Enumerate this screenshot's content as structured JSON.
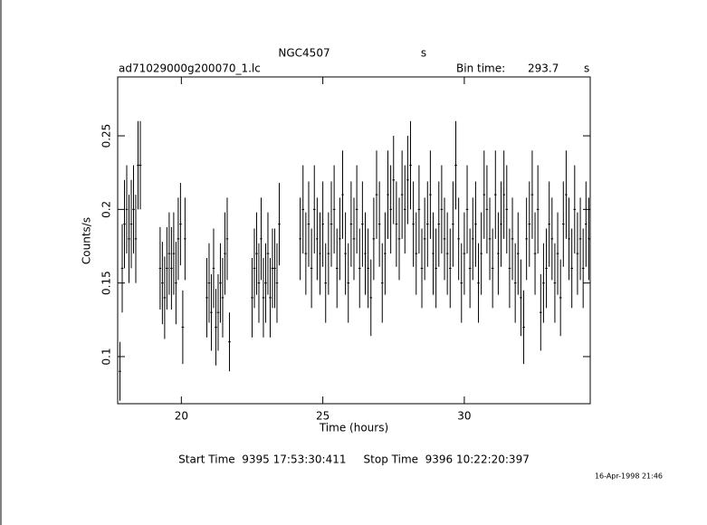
{
  "chart_data": {
    "type": "errorbar",
    "title": "NGC4507",
    "title_unit": "s",
    "subtitle": "ad71029000g200070_1.lc",
    "bin_time_label": "Bin time:",
    "bin_time": "293.7",
    "bin_time_unit": "s",
    "x_label": "Time (hours)",
    "y_label": "Counts/s",
    "footer": "Start Time  9395 17:53:30:411     Stop Time  9396 10:22:20:397",
    "timestamp": "16-Apr-1998 21:46",
    "color": "#000000",
    "xlim": [
      17.75,
      34.45
    ],
    "ylim": [
      0.068,
      0.29
    ],
    "xticks": [
      20,
      25,
      30
    ],
    "yticks": [
      0.1,
      0.15,
      0.2,
      0.25
    ],
    "x": [
      17.83,
      17.91,
      17.99,
      18.07,
      18.15,
      18.23,
      18.31,
      18.39,
      18.47,
      18.55,
      19.25,
      19.33,
      19.41,
      19.49,
      19.57,
      19.65,
      19.73,
      19.81,
      19.89,
      19.97,
      20.05,
      20.13,
      20.9,
      20.98,
      21.06,
      21.14,
      21.22,
      21.3,
      21.38,
      21.46,
      21.54,
      21.62,
      21.7,
      22.5,
      22.58,
      22.66,
      22.74,
      22.82,
      22.9,
      22.98,
      23.06,
      23.14,
      23.22,
      23.3,
      23.38,
      23.46,
      24.2,
      24.3,
      24.4,
      24.5,
      24.6,
      24.7,
      24.8,
      24.9,
      25.0,
      25.1,
      25.2,
      25.3,
      25.4,
      25.5,
      25.6,
      25.7,
      25.8,
      25.9,
      26.0,
      26.1,
      26.2,
      26.3,
      26.4,
      26.5,
      26.6,
      26.7,
      26.8,
      26.9,
      27.0,
      27.1,
      27.2,
      27.3,
      27.4,
      27.5,
      27.6,
      27.7,
      27.8,
      27.9,
      28.0,
      28.1,
      28.2,
      28.3,
      28.4,
      28.5,
      28.6,
      28.7,
      28.8,
      28.9,
      29.0,
      29.1,
      29.2,
      29.3,
      29.4,
      29.5,
      29.6,
      29.7,
      29.8,
      29.9,
      30.0,
      30.1,
      30.2,
      30.3,
      30.4,
      30.5,
      30.6,
      30.7,
      30.8,
      30.9,
      31.0,
      31.1,
      31.2,
      31.3,
      31.4,
      31.5,
      31.6,
      31.7,
      31.8,
      31.9,
      32.0,
      32.1,
      32.2,
      32.3,
      32.4,
      32.5,
      32.6,
      32.7,
      32.8,
      32.9,
      33.0,
      33.1,
      33.2,
      33.3,
      33.4,
      33.5,
      33.6,
      33.7,
      33.8,
      33.9,
      34.0,
      34.1,
      34.2,
      34.3,
      34.4
    ],
    "values": [
      0.09,
      0.16,
      0.19,
      0.2,
      0.18,
      0.19,
      0.2,
      0.18,
      0.23,
      0.23,
      0.16,
      0.15,
      0.14,
      0.16,
      0.17,
      0.16,
      0.17,
      0.15,
      0.18,
      0.19,
      0.12,
      0.18,
      0.14,
      0.15,
      0.13,
      0.16,
      0.12,
      0.13,
      0.15,
      0.14,
      0.17,
      0.18,
      0.11,
      0.14,
      0.16,
      0.17,
      0.15,
      0.18,
      0.14,
      0.15,
      0.17,
      0.14,
      0.16,
      0.16,
      0.15,
      0.19,
      0.18,
      0.2,
      0.17,
      0.19,
      0.16,
      0.2,
      0.18,
      0.17,
      0.19,
      0.15,
      0.17,
      0.19,
      0.2,
      0.16,
      0.18,
      0.21,
      0.17,
      0.15,
      0.19,
      0.18,
      0.2,
      0.16,
      0.19,
      0.17,
      0.16,
      0.14,
      0.18,
      0.21,
      0.19,
      0.15,
      0.17,
      0.21,
      0.2,
      0.22,
      0.19,
      0.18,
      0.21,
      0.2,
      0.22,
      0.23,
      0.19,
      0.17,
      0.2,
      0.16,
      0.18,
      0.19,
      0.21,
      0.17,
      0.16,
      0.19,
      0.2,
      0.18,
      0.17,
      0.16,
      0.19,
      0.23,
      0.18,
      0.15,
      0.17,
      0.2,
      0.16,
      0.18,
      0.19,
      0.15,
      0.17,
      0.21,
      0.2,
      0.18,
      0.16,
      0.21,
      0.17,
      0.19,
      0.21,
      0.2,
      0.16,
      0.18,
      0.15,
      0.17,
      0.14,
      0.12,
      0.18,
      0.19,
      0.21,
      0.17,
      0.2,
      0.13,
      0.15,
      0.16,
      0.19,
      0.18,
      0.15,
      0.17,
      0.14,
      0.19,
      0.21,
      0.18,
      0.16,
      0.2,
      0.17,
      0.18,
      0.16,
      0.19,
      0.18
    ],
    "errors": [
      0.02,
      0.03,
      0.03,
      0.03,
      0.03,
      0.03,
      0.03,
      0.03,
      0.03,
      0.03,
      0.028,
      0.028,
      0.028,
      0.028,
      0.028,
      0.028,
      0.028,
      0.028,
      0.028,
      0.028,
      0.025,
      0.028,
      0.027,
      0.027,
      0.026,
      0.027,
      0.026,
      0.026,
      0.027,
      0.027,
      0.028,
      0.028,
      0.02,
      0.027,
      0.027,
      0.028,
      0.027,
      0.028,
      0.027,
      0.027,
      0.028,
      0.027,
      0.027,
      0.027,
      0.027,
      0.028,
      0.028,
      0.03,
      0.028,
      0.029,
      0.027,
      0.03,
      0.028,
      0.028,
      0.029,
      0.027,
      0.028,
      0.029,
      0.03,
      0.027,
      0.028,
      0.03,
      0.028,
      0.027,
      0.029,
      0.028,
      0.03,
      0.027,
      0.029,
      0.028,
      0.027,
      0.026,
      0.028,
      0.03,
      0.029,
      0.027,
      0.028,
      0.03,
      0.03,
      0.03,
      0.029,
      0.028,
      0.03,
      0.03,
      0.03,
      0.03,
      0.029,
      0.028,
      0.03,
      0.027,
      0.028,
      0.029,
      0.03,
      0.028,
      0.027,
      0.029,
      0.03,
      0.028,
      0.028,
      0.027,
      0.029,
      0.03,
      0.028,
      0.027,
      0.028,
      0.03,
      0.027,
      0.028,
      0.029,
      0.027,
      0.028,
      0.03,
      0.03,
      0.028,
      0.027,
      0.03,
      0.028,
      0.029,
      0.03,
      0.03,
      0.027,
      0.028,
      0.027,
      0.028,
      0.026,
      0.025,
      0.028,
      0.029,
      0.03,
      0.028,
      0.03,
      0.026,
      0.027,
      0.027,
      0.029,
      0.028,
      0.027,
      0.028,
      0.026,
      0.029,
      0.03,
      0.028,
      0.027,
      0.03,
      0.028,
      0.028,
      0.027,
      0.029,
      0.028
    ]
  }
}
